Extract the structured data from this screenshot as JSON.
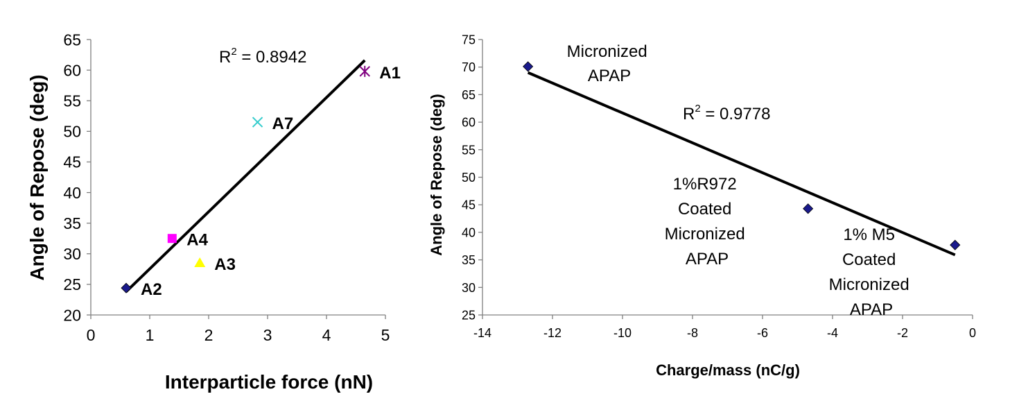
{
  "chart_data": [
    {
      "type": "scatter",
      "xlabel": "Interparticle force (nN)",
      "ylabel": "Angle of Repose (deg)",
      "xlim": [
        0,
        5
      ],
      "ylim": [
        20,
        65
      ],
      "x_ticks": [
        "0",
        "1",
        "2",
        "3",
        "4",
        "5"
      ],
      "y_ticks": [
        "20",
        "25",
        "30",
        "35",
        "40",
        "45",
        "50",
        "55",
        "60",
        "65"
      ],
      "grid": false,
      "legend": "none",
      "series": [
        {
          "name": "A2",
          "x": 0.6,
          "y": 24.4,
          "marker": "diamond",
          "color": "#1a1a8c"
        },
        {
          "name": "A4",
          "x": 1.38,
          "y": 32.5,
          "marker": "square",
          "color": "#ff00ff"
        },
        {
          "name": "A3",
          "x": 1.85,
          "y": 28.5,
          "marker": "triangle",
          "color": "#ffff00"
        },
        {
          "name": "A7",
          "x": 2.83,
          "y": 51.5,
          "marker": "x",
          "color": "#33cccc"
        },
        {
          "name": "A1",
          "x": 4.65,
          "y": 59.8,
          "marker": "star",
          "color": "#800080"
        }
      ],
      "trendline": {
        "x": [
          0.6,
          4.65
        ],
        "y": [
          23.8,
          61.6
        ]
      },
      "r2_label": {
        "prefix": "R",
        "sup": "2",
        "suffix": " = 0.8942"
      }
    },
    {
      "type": "scatter",
      "xlabel": "Charge/mass (nC/g)",
      "ylabel": "Angle of Repose (deg)",
      "xlim": [
        -14,
        0
      ],
      "ylim": [
        25,
        75
      ],
      "x_ticks": [
        "-14",
        "-12",
        "-10",
        "-8",
        "-6",
        "-4",
        "-2",
        "0"
      ],
      "y_ticks": [
        "25",
        "30",
        "35",
        "40",
        "45",
        "50",
        "55",
        "60",
        "65",
        "70",
        "75"
      ],
      "grid": false,
      "legend": "none",
      "series": [
        {
          "name": "",
          "x": [
            -12.7,
            -4.7,
            -0.5
          ],
          "y": [
            70.1,
            44.3,
            37.7
          ],
          "marker": "diamond",
          "color": "#1a1a8c"
        }
      ],
      "trendline": {
        "x": [
          -12.7,
          -0.5
        ],
        "y": [
          69.0,
          35.9
        ]
      },
      "r2_label": {
        "prefix": "R",
        "sup": "2",
        "suffix": " = 0.9778"
      },
      "annotations": [
        {
          "lines": [
            "Micronized",
            "APAP"
          ]
        },
        {
          "lines": [
            "1%R972",
            "Coated",
            "Micronized",
            "APAP"
          ]
        },
        {
          "lines": [
            "1% M5",
            "Coated",
            "Micronized",
            "APAP"
          ]
        }
      ]
    }
  ]
}
